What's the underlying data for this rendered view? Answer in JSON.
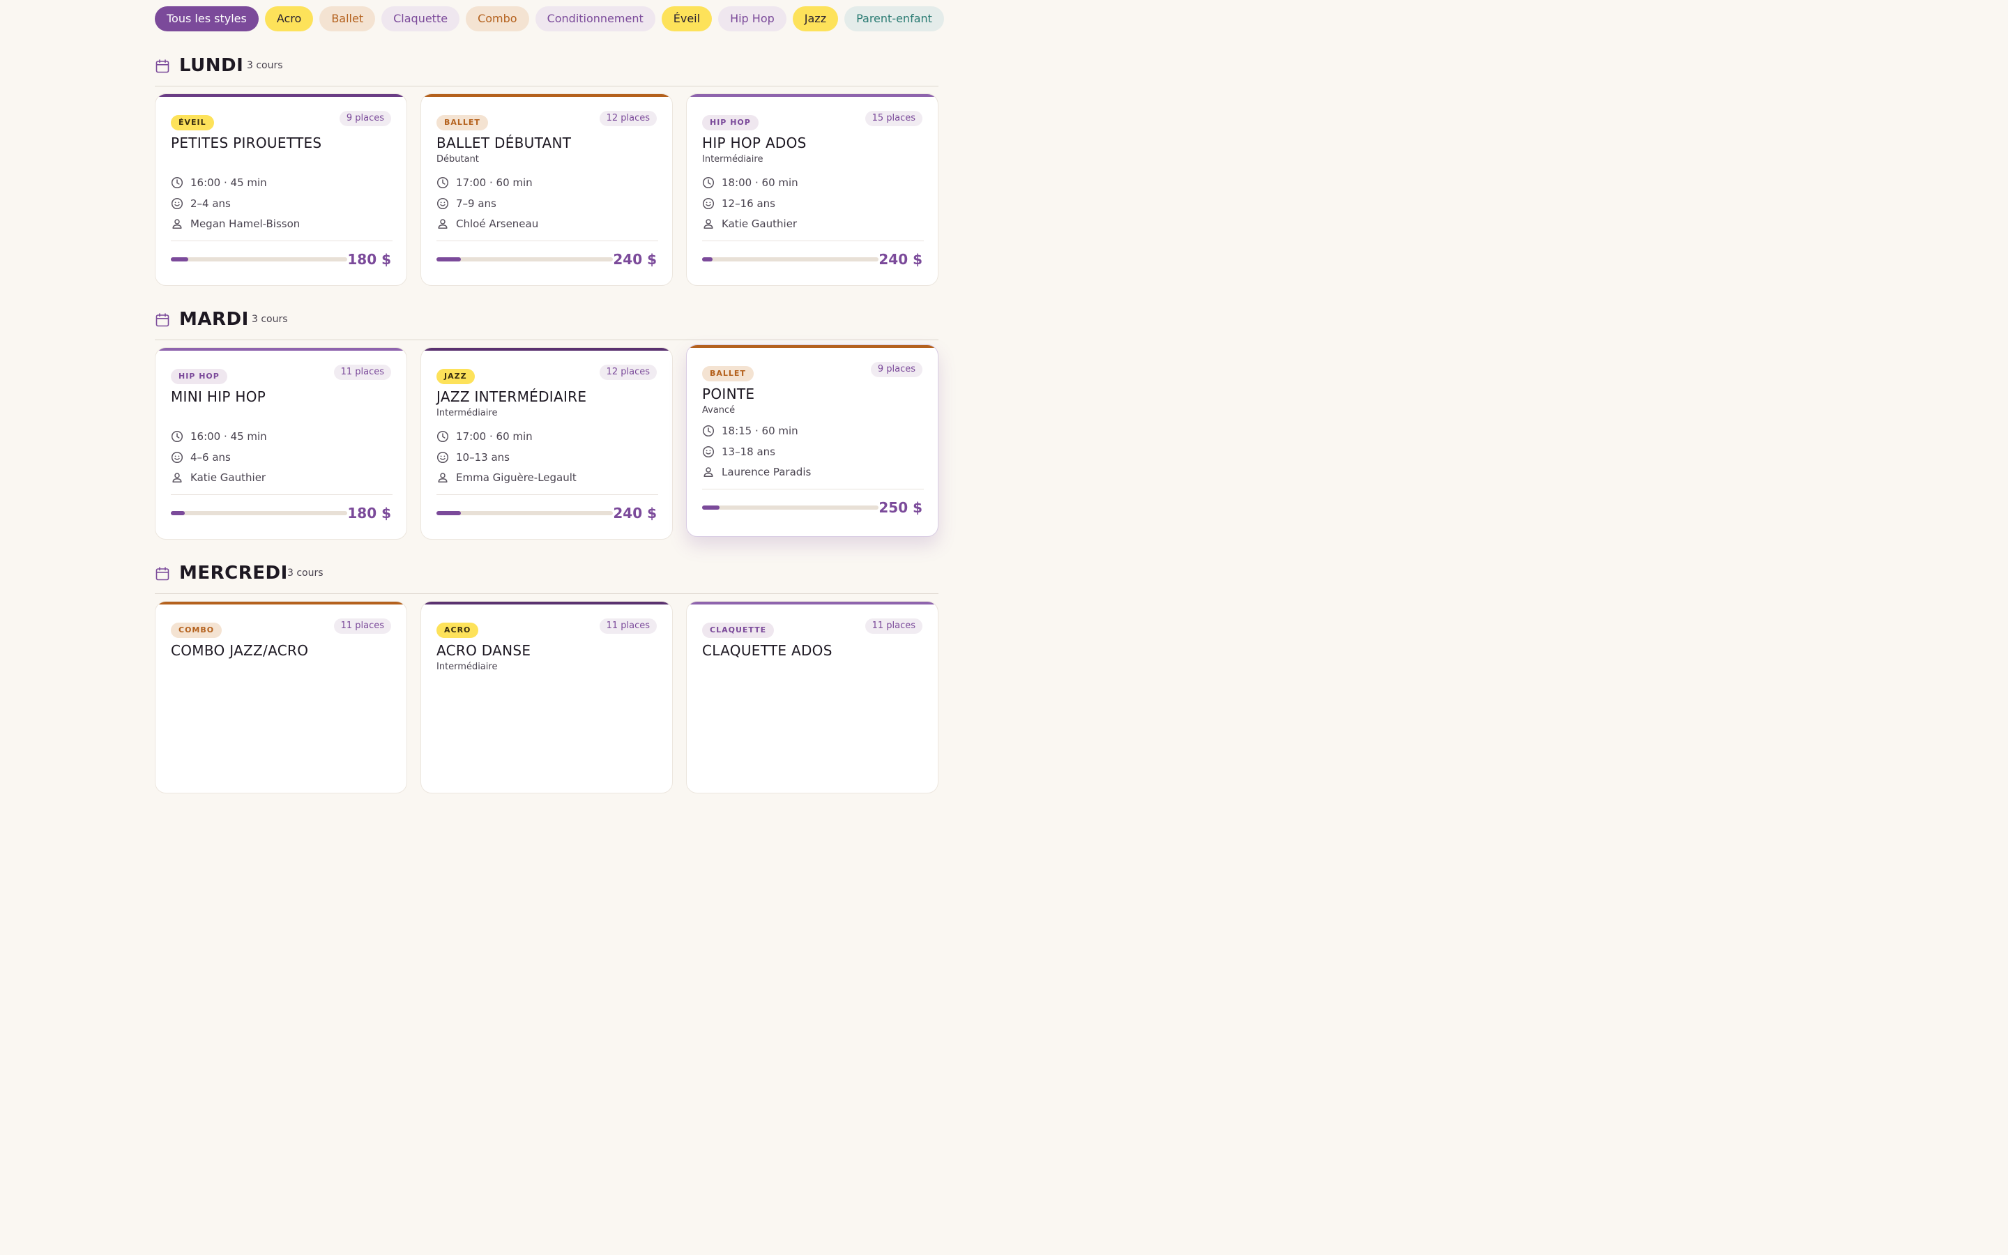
{
  "filters": [
    {
      "label": "Tous les styles",
      "style": "active"
    },
    {
      "label": "Acro",
      "style": "yellow"
    },
    {
      "label": "Ballet",
      "style": "peach"
    },
    {
      "label": "Claquette",
      "style": "lilac"
    },
    {
      "label": "Combo",
      "style": "peach"
    },
    {
      "label": "Conditionnement",
      "style": "lilac"
    },
    {
      "label": "Éveil",
      "style": "yellow"
    },
    {
      "label": "Hip Hop",
      "style": "lilac"
    },
    {
      "label": "Jazz",
      "style": "yellow"
    },
    {
      "label": "Parent-enfant",
      "style": "teal"
    }
  ],
  "colors": {
    "accent": "#7b4a9a",
    "ballet_bar": "#b4611d",
    "eveil_bar": "#6a3d85",
    "hiphop_bar": "#8e64ad",
    "jazz_bar": "#5a3270"
  },
  "days": [
    {
      "title": "LUNDI",
      "count": "3 cours",
      "classes": [
        {
          "tag": "ÉVEIL",
          "tag_style": "yellow",
          "bar": "#6a3d85",
          "places": "9 places",
          "name": "PETITES PIROUETTES",
          "level": "",
          "time": "16:00 · 45 min",
          "ages": "2–4 ans",
          "teacher": "Megan Hamel-Bisson",
          "fill_fraction": 0.1,
          "price": "180 $"
        },
        {
          "tag": "BALLET",
          "tag_style": "peach",
          "bar": "#b4611d",
          "places": "12 places",
          "name": "BALLET DÉBUTANT",
          "level": "Débutant",
          "time": "17:00 · 60 min",
          "ages": "7–9 ans",
          "teacher": "Chloé Arseneau",
          "fill_fraction": 0.14,
          "price": "240 $"
        },
        {
          "tag": "HIP HOP",
          "tag_style": "lilac",
          "bar": "#8e64ad",
          "places": "15 places",
          "name": "HIP HOP ADOS",
          "level": "Intermédiaire",
          "time": "18:00 · 60 min",
          "ages": "12–16 ans",
          "teacher": "Katie Gauthier",
          "fill_fraction": 0.06,
          "price": "240 $"
        }
      ]
    },
    {
      "title": "MARDI",
      "count": "3 cours",
      "classes": [
        {
          "tag": "HIP HOP",
          "tag_style": "lilac",
          "bar": "#8e64ad",
          "places": "11 places",
          "name": "MINI HIP HOP",
          "level": "",
          "time": "16:00 · 45 min",
          "ages": "4–6 ans",
          "teacher": "Katie Gauthier",
          "fill_fraction": 0.08,
          "price": "180 $"
        },
        {
          "tag": "JAZZ",
          "tag_style": "yellow",
          "bar": "#5a3270",
          "places": "12 places",
          "name": "JAZZ INTERMÉDIAIRE",
          "level": "Intermédiaire",
          "time": "17:00 · 60 min",
          "ages": "10–13 ans",
          "teacher": "Emma Giguère-Legault",
          "fill_fraction": 0.14,
          "price": "240 $"
        },
        {
          "tag": "BALLET",
          "tag_style": "peach",
          "bar": "#b4611d",
          "places": "9 places",
          "name": "POINTE",
          "level": "Avancé",
          "time": "18:15 · 60 min",
          "ages": "13–18 ans",
          "teacher": "Laurence Paradis",
          "fill_fraction": 0.1,
          "price": "250 $"
        }
      ]
    },
    {
      "title": "MERCREDI",
      "count": "3 cours",
      "classes": [
        {
          "tag": "COMBO",
          "tag_style": "peach",
          "bar": "#b4611d",
          "places": "11 places",
          "name": "COMBO JAZZ/ACRO",
          "level": "",
          "time": "",
          "ages": "",
          "teacher": "",
          "fill_fraction": 0,
          "price": ""
        },
        {
          "tag": "ACRO",
          "tag_style": "yellow",
          "bar": "#5a3270",
          "places": "11 places",
          "name": "ACRO DANSE",
          "level": "Intermédiaire",
          "time": "",
          "ages": "",
          "teacher": "",
          "fill_fraction": 0,
          "price": ""
        },
        {
          "tag": "CLAQUETTE",
          "tag_style": "lilac",
          "bar": "#8e64ad",
          "places": "11 places",
          "name": "CLAQUETTE ADOS",
          "level": "",
          "time": "",
          "ages": "",
          "teacher": "",
          "fill_fraction": 0,
          "price": ""
        }
      ]
    }
  ]
}
